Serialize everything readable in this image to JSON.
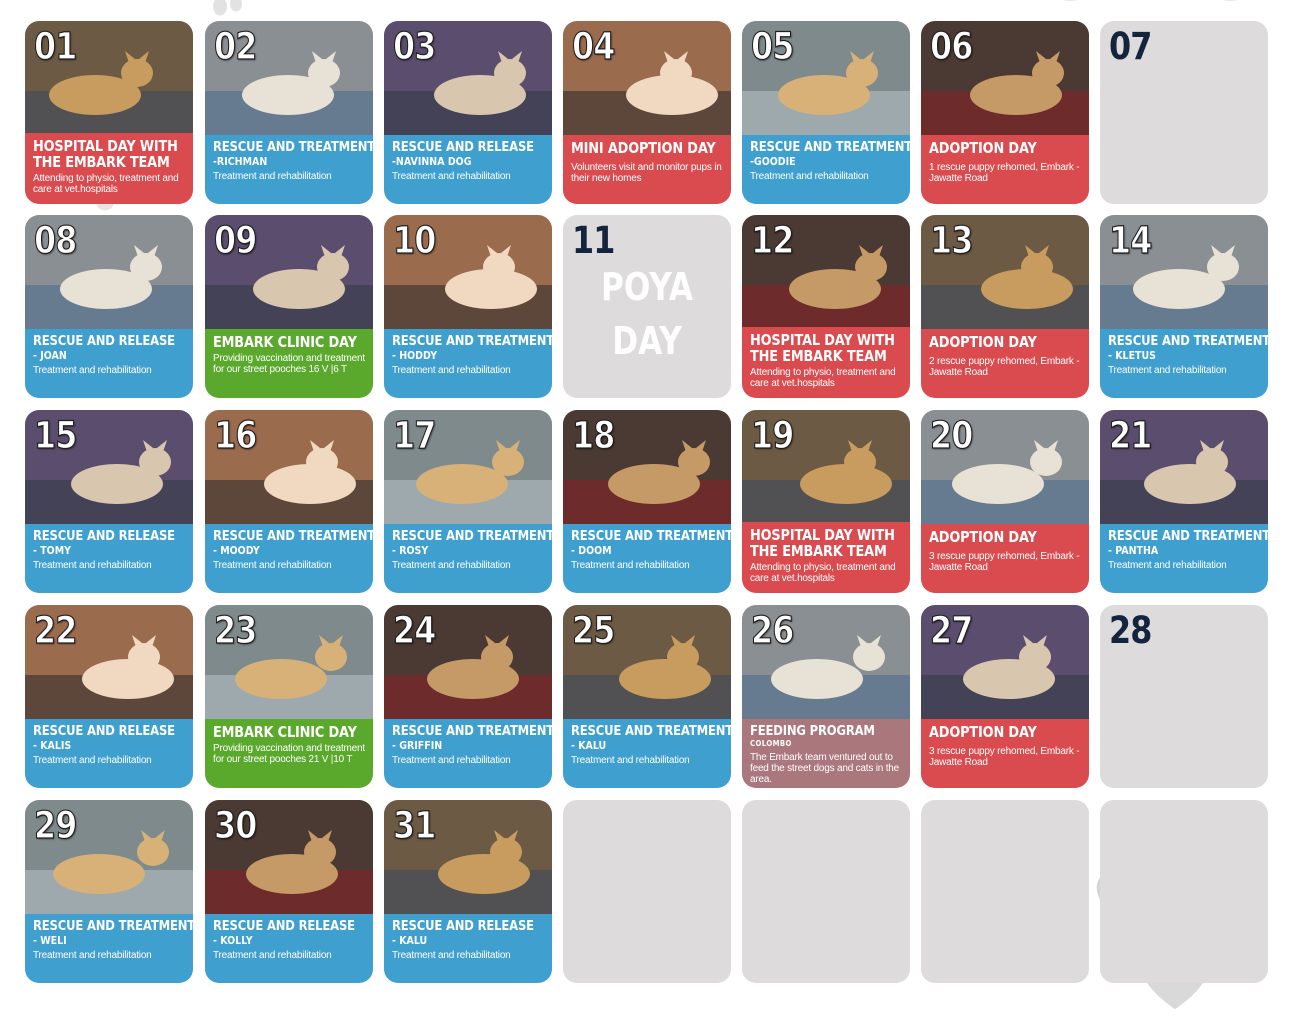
{
  "calendar": {
    "days": [
      {
        "day": "01",
        "type": "hospital",
        "title_lines": [
          "HOSPITAL DAY WITH",
          "THE EMBARK TEAM"
        ],
        "subtitle": "",
        "description": "Attending to physio, treatment and care at vet.hospitals",
        "photo_icon": "dog-photo"
      },
      {
        "day": "02",
        "type": "rescue",
        "title_lines": [
          "RESCUE AND TREATMENT"
        ],
        "subtitle": "-RICHMAN",
        "description": "Treatment and rehabilitation",
        "photo_icon": "dog-photo"
      },
      {
        "day": "03",
        "type": "rescue",
        "title_lines": [
          "RESCUE AND RELEASE"
        ],
        "subtitle": "-NAVINNA DOG",
        "description": "Treatment and rehabilitation",
        "photo_icon": "dog-photo"
      },
      {
        "day": "04",
        "type": "mini",
        "title_lines": [
          "MINI ADOPTION DAY"
        ],
        "subtitle": "",
        "description": "Volunteers visit and monitor pups in their new homes",
        "photo_icon": "dog-photo"
      },
      {
        "day": "05",
        "type": "rescue",
        "title_lines": [
          "RESCUE AND  TREATMENT"
        ],
        "subtitle": "-GOODIE",
        "description": "Treatment and rehabilitation",
        "photo_icon": "dog-photo"
      },
      {
        "day": "06",
        "type": "adopt",
        "title_lines": [
          "ADOPTION DAY"
        ],
        "subtitle": "",
        "description": "1 rescue puppy rehomed, Embark - Jawatte Road",
        "photo_icon": "dog-photo"
      },
      {
        "day": "07",
        "type": "empty",
        "title_lines": [],
        "subtitle": "",
        "description": ""
      },
      {
        "day": "08",
        "type": "rescue",
        "title_lines": [
          "RESCUE AND RELEASE"
        ],
        "subtitle": "- JOAN",
        "description": "Treatment and rehabilitation",
        "photo_icon": "dog-photo"
      },
      {
        "day": "09",
        "type": "clinic",
        "title_lines": [
          "EMBARK CLINIC DAY"
        ],
        "subtitle": "",
        "description": "Providing vaccination and treatment for our street pooches 16 V |6 T",
        "photo_icon": "dog-photo"
      },
      {
        "day": "10",
        "type": "rescue",
        "title_lines": [
          "RESCUE AND TREATMENT"
        ],
        "subtitle": "-  HODDY",
        "description": "Treatment and rehabilitation",
        "photo_icon": "dog-photo"
      },
      {
        "day": "11",
        "type": "poya",
        "title_lines": [
          "POYA",
          "DAY"
        ],
        "subtitle": "",
        "description": ""
      },
      {
        "day": "12",
        "type": "hospital",
        "title_lines": [
          "HOSPITAL DAY WITH",
          "THE EMBARK TEAM"
        ],
        "subtitle": "",
        "description": "Attending to physio, treatment and care at vet.hospitals",
        "photo_icon": "dog-photo"
      },
      {
        "day": "13",
        "type": "adopt",
        "title_lines": [
          "ADOPTION DAY"
        ],
        "subtitle": "",
        "description": "2 rescue puppy rehomed, Embark - Jawatte Road",
        "photo_icon": "dog-photo"
      },
      {
        "day": "14",
        "type": "rescue",
        "title_lines": [
          "RESCUE AND TREATMENT"
        ],
        "subtitle": "- KLETUS",
        "description": "Treatment and rehabilitation",
        "photo_icon": "dog-photo"
      },
      {
        "day": "15",
        "type": "rescue",
        "title_lines": [
          "RESCUE AND RELEASE"
        ],
        "subtitle": "- TOMY",
        "description": "Treatment and rehabilitation",
        "photo_icon": "dog-photo"
      },
      {
        "day": "16",
        "type": "rescue",
        "title_lines": [
          "RESCUE AND TREATMENT"
        ],
        "subtitle": "- MOODY",
        "description": "Treatment and rehabilitation",
        "photo_icon": "dog-photo"
      },
      {
        "day": "17",
        "type": "rescue",
        "title_lines": [
          "RESCUE AND TREATMENT"
        ],
        "subtitle": "- ROSY",
        "description": "Treatment and rehabilitation",
        "photo_icon": "dog-photo"
      },
      {
        "day": "18",
        "type": "rescue",
        "title_lines": [
          "RESCUE AND TREATMENT"
        ],
        "subtitle": "- DOOM",
        "description": "Treatment and rehabilitation",
        "photo_icon": "dog-photo"
      },
      {
        "day": "19",
        "type": "hospital",
        "title_lines": [
          "HOSPITAL DAY WITH",
          "THE EMBARK TEAM"
        ],
        "subtitle": "",
        "description": "Attending to physio, treatment and care at vet.hospitals",
        "photo_icon": "dog-photo"
      },
      {
        "day": "20",
        "type": "adopt",
        "title_lines": [
          "ADOPTION DAY"
        ],
        "subtitle": "",
        "description": "3 rescue puppy rehomed, Embark - Jawatte Road",
        "photo_icon": "dog-photo"
      },
      {
        "day": "21",
        "type": "rescue",
        "title_lines": [
          "RESCUE AND TREATMENT"
        ],
        "subtitle": "- PANTHA",
        "description": "Treatment and rehabilitation",
        "photo_icon": "dog-photo"
      },
      {
        "day": "22",
        "type": "rescue",
        "title_lines": [
          "RESCUE AND RELEASE"
        ],
        "subtitle": "- KALIS",
        "description": "Treatment and rehabilitation",
        "photo_icon": "dog-photo"
      },
      {
        "day": "23",
        "type": "clinic",
        "title_lines": [
          "EMBARK CLINIC DAY"
        ],
        "subtitle": "",
        "description": "Providing vaccination and treatment for our street pooches 21 V |10 T",
        "photo_icon": "dog-photo"
      },
      {
        "day": "24",
        "type": "rescue",
        "title_lines": [
          "RESCUE AND TREATMENT"
        ],
        "subtitle": "- GRIFFIN",
        "description": "Treatment and rehabilitation",
        "photo_icon": "dog-photo"
      },
      {
        "day": "25",
        "type": "rescue",
        "title_lines": [
          "RESCUE AND TREATMENT"
        ],
        "subtitle": "- KALU",
        "description": "Treatment and rehabilitation",
        "photo_icon": "dog-photo"
      },
      {
        "day": "26",
        "type": "feeding",
        "title_lines": [
          "FEEDING PROGRAM"
        ],
        "subtitle": "COLOMBO",
        "description": "The Embark team ventured out to feed the street dogs and cats in the area.",
        "photo_icon": "dog-photo"
      },
      {
        "day": "27",
        "type": "adopt",
        "title_lines": [
          "ADOPTION DAY"
        ],
        "subtitle": "",
        "description": "3 rescue puppy rehomed, Embark - Jawatte Road",
        "photo_icon": "dog-photo"
      },
      {
        "day": "28",
        "type": "empty",
        "title_lines": [],
        "subtitle": "",
        "description": ""
      },
      {
        "day": "29",
        "type": "rescue",
        "title_lines": [
          "RESCUE AND TREATMENT"
        ],
        "subtitle": "- WELI",
        "description": "Treatment and rehabilitation",
        "photo_icon": "dog-photo"
      },
      {
        "day": "30",
        "type": "rescue",
        "title_lines": [
          "RESCUE AND RELEASE"
        ],
        "subtitle": "- KOLLY",
        "description": "Treatment and rehabilitation",
        "photo_icon": "dog-photo"
      },
      {
        "day": "31",
        "type": "rescue",
        "title_lines": [
          "RESCUE AND RELEASE"
        ],
        "subtitle": "- KALU",
        "description": "Treatment and rehabilitation",
        "photo_icon": "dog-photo"
      },
      {
        "day": "",
        "type": "blank"
      },
      {
        "day": "",
        "type": "blank"
      },
      {
        "day": "",
        "type": "blank"
      },
      {
        "day": "",
        "type": "blank"
      }
    ]
  },
  "colors": {
    "rescue": "#3f9fce",
    "adoption": "#d94b4e",
    "clinic": "#5aa82c",
    "feeding": "#a9777c",
    "empty_cell": "#dddbdc",
    "day_number_dark": "#13243c"
  },
  "decorations": [
    "heart-icon",
    "paw-icon"
  ]
}
